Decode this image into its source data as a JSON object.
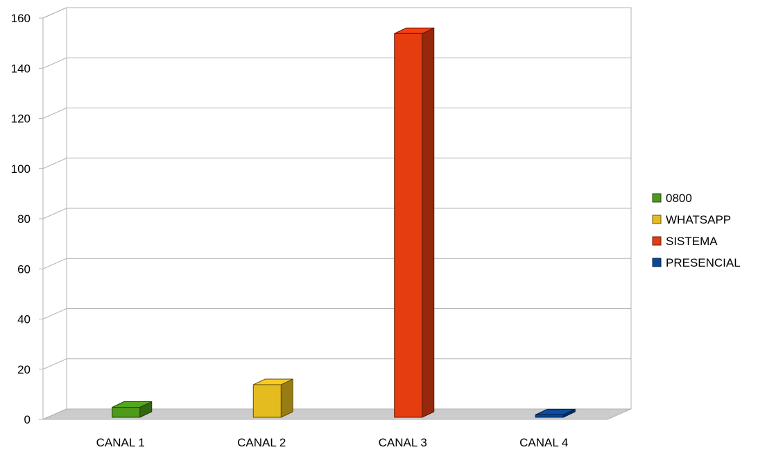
{
  "chart_data": {
    "type": "bar",
    "style": "3d-column",
    "categories": [
      "CANAL 1",
      "CANAL 2",
      "CANAL 3",
      "CANAL 4"
    ],
    "series": [
      {
        "name": "0800",
        "color": "#4e9a1a",
        "values": [
          4,
          0,
          0,
          0
        ]
      },
      {
        "name": "WHATSAPP",
        "color": "#e5bc1f",
        "values": [
          0,
          13,
          0,
          0
        ]
      },
      {
        "name": "SISTEMA",
        "color": "#e53c10",
        "values": [
          0,
          0,
          153,
          0
        ]
      },
      {
        "name": "PRESENCIAL",
        "color": "#0b4797",
        "values": [
          0,
          0,
          0,
          1
        ]
      }
    ],
    "yticks": [
      0,
      20,
      40,
      60,
      80,
      100,
      120,
      140,
      160
    ],
    "ylim": [
      0,
      160
    ],
    "grid": true,
    "legend_position": "right",
    "title": "",
    "xlabel": "",
    "ylabel": ""
  }
}
